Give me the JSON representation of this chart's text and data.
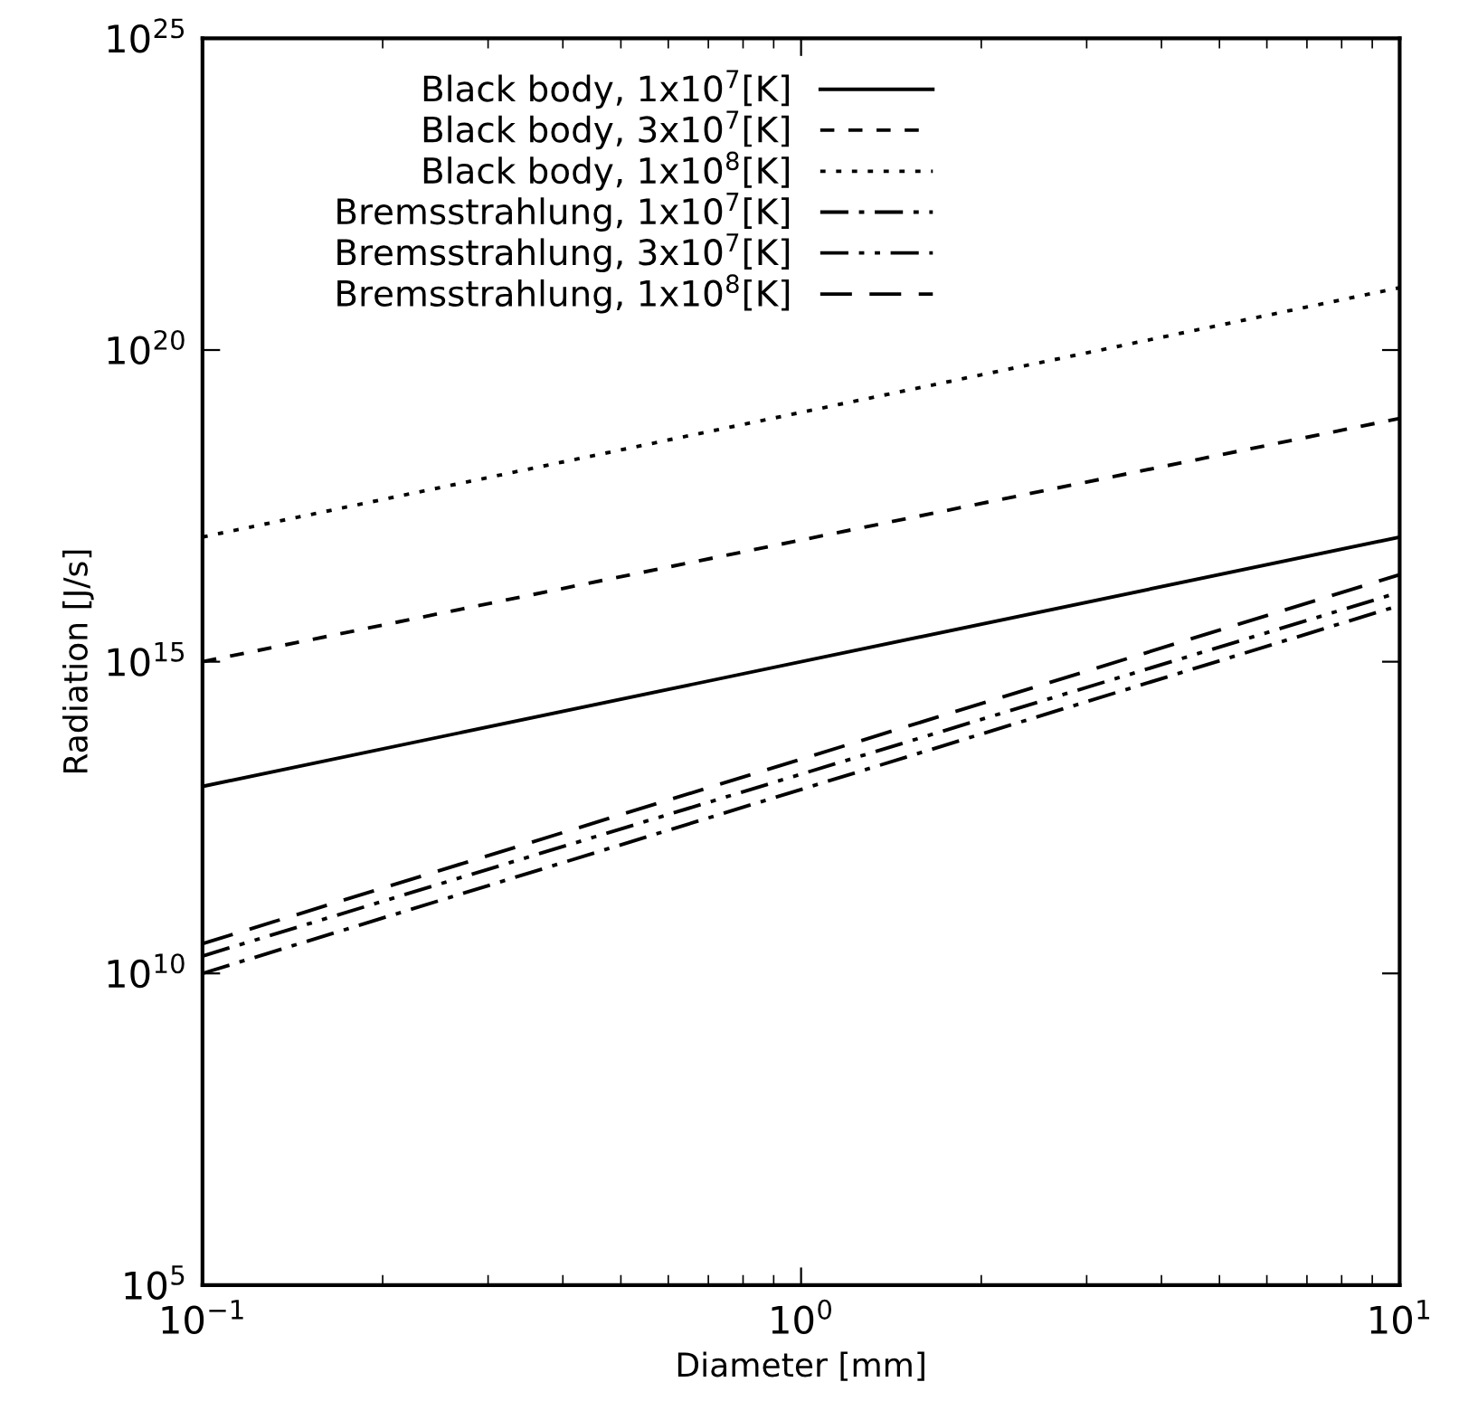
{
  "chart_data": {
    "type": "line",
    "xlabel": "Diameter [mm]",
    "ylabel": "Radiation [J/s]",
    "log": "xy",
    "grid": false,
    "legend": "top",
    "marker": "none",
    "xlim": [
      0.1,
      10
    ],
    "xticks": [
      {
        "value": 0.1,
        "label": "10$^{−1}$"
      },
      {
        "value": 1,
        "label": "10$^{0}$"
      },
      {
        "value": 10,
        "label": "10$^{1}$"
      }
    ],
    "ylim": [
      100000.0,
      1e+25
    ],
    "yticks": [
      {
        "value": 100000.0,
        "label": "10$^{5}$"
      },
      {
        "value": 10000000000.0,
        "label": "10$^{10}$"
      },
      {
        "value": 1000000000000000.0,
        "label": "10$^{15}$"
      },
      {
        "value": 1e+20,
        "label": "10$^{20}$"
      },
      {
        "value": 1e+25,
        "label": "10$^{25}$"
      }
    ],
    "x": [
      0.1,
      10
    ],
    "series": [
      {
        "name": "Black body, 1x10$^{7}$[K]",
        "color": "#000000",
        "line_style": "solid",
        "values": [
          10000000000000.0,
          1e+17
        ]
      },
      {
        "name": "Black body, 3x10$^{7}$[K]",
        "color": "#000000",
        "line_style": "dashed",
        "values": [
          1000000000000000.0,
          8e+18
        ]
      },
      {
        "name": "Black body, 1x10$^{8}$[K]",
        "color": "#000000",
        "line_style": "dotted",
        "values": [
          1e+17,
          1e+21
        ]
      },
      {
        "name": "Bremsstrahlung, 1x10$^{7}$[K]",
        "color": "#000000",
        "line_style": "dashdot",
        "values": [
          10000000000.0,
          8000000000000000.0
        ]
      },
      {
        "name": "Bremsstrahlung, 3x10$^{7}$[K]",
        "color": "#000000",
        "line_style": "dashdotdot",
        "values": [
          19000000000.0,
          1.3e+16
        ]
      },
      {
        "name": "Bremsstrahlung, 1x10$^{8}$[K]",
        "color": "#000000",
        "line_style": "longdash",
        "values": [
          30000000000.0,
          2.5e+16
        ]
      }
    ]
  }
}
